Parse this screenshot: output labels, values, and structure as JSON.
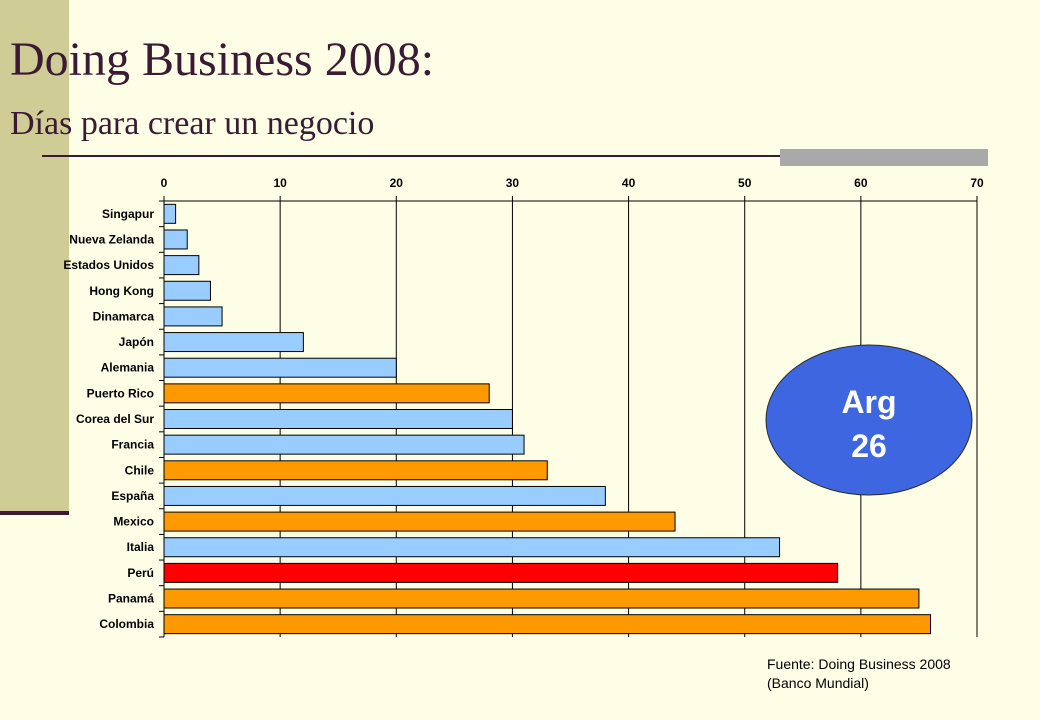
{
  "slide": {
    "title": "Doing Business 2008:",
    "subtitle": "Días para crear un negocio",
    "source_line1": "Fuente: Doing Business 2008",
    "source_line2": "(Banco Mundial)"
  },
  "callout": {
    "line1": "Arg",
    "line2": "26",
    "color": "#3d66e0"
  },
  "colors": {
    "blue": "#99ccff",
    "orange": "#ff9900",
    "red": "#ff0000"
  },
  "chart_data": {
    "type": "bar",
    "orientation": "horizontal",
    "xlim": [
      0,
      70
    ],
    "ticks": [
      0,
      10,
      20,
      30,
      40,
      50,
      60,
      70
    ],
    "x_axis_position": "top",
    "grid": true,
    "legend": "none",
    "categories": [
      "Singapur",
      "Nueva Zelanda",
      "Estados Unidos",
      "Hong Kong",
      "Dinamarca",
      "Japón",
      "Alemania",
      "Puerto Rico",
      "Corea del Sur",
      "Francia",
      "Chile",
      "España",
      "Mexico",
      "Italia",
      "Perú",
      "Panamá",
      "Colombia"
    ],
    "values": [
      1,
      2,
      3,
      4,
      5,
      12,
      20,
      28,
      30,
      31,
      33,
      38,
      44,
      53,
      58,
      65,
      66
    ],
    "bar_colors": [
      "blue",
      "blue",
      "blue",
      "blue",
      "blue",
      "blue",
      "blue",
      "orange",
      "blue",
      "blue",
      "orange",
      "blue",
      "orange",
      "blue",
      "red",
      "orange",
      "orange"
    ]
  }
}
